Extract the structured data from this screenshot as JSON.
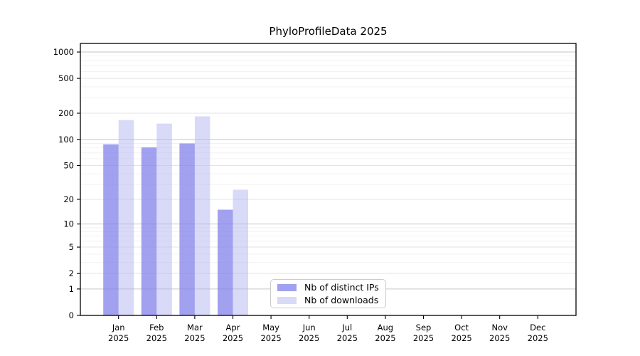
{
  "chart_data": {
    "type": "bar",
    "title": "PhyloProfileData 2025",
    "x_axis": {
      "months": [
        "Jan",
        "Feb",
        "Mar",
        "Apr",
        "May",
        "Jun",
        "Jul",
        "Aug",
        "Sep",
        "Oct",
        "Nov",
        "Dec"
      ],
      "year": "2025"
    },
    "y_axis": {
      "scale": "log1p",
      "ticks": [
        0,
        1,
        2,
        5,
        10,
        20,
        50,
        100,
        200,
        500,
        1000
      ],
      "major_gridlines": [
        1,
        10,
        100,
        1000
      ],
      "minor_gridlines": [
        3,
        4,
        6,
        7,
        8,
        9,
        30,
        40,
        60,
        70,
        80,
        90,
        300,
        400,
        600,
        700,
        800,
        900
      ],
      "ylim_top": 1250
    },
    "series": [
      {
        "name": "Nb of distinct IPs",
        "color": "#a1a1f0",
        "fill": "rgba(130,130,235,0.75)",
        "values": [
          88,
          81,
          90,
          15,
          0,
          0,
          0,
          0,
          0,
          0,
          0,
          0
        ]
      },
      {
        "name": "Nb of downloads",
        "color": "#d9d9f8",
        "fill": "rgba(179,179,241,0.5)",
        "values": [
          167,
          152,
          184,
          26,
          0,
          0,
          0,
          0,
          0,
          0,
          0,
          0
        ]
      }
    ],
    "legend": {
      "position": "inside-bottom",
      "entries": [
        "Nb of distinct IPs",
        "Nb of downloads"
      ]
    },
    "grid": "horizontal"
  },
  "colors": {
    "background": "#ffffff",
    "frame": "#000000",
    "tick_text": "#000000",
    "grid_major": "#c6c6c6",
    "grid_sub": "#e4e4e4",
    "grid_minor": "#f2f2f2",
    "legend_border": "#cccccc"
  }
}
